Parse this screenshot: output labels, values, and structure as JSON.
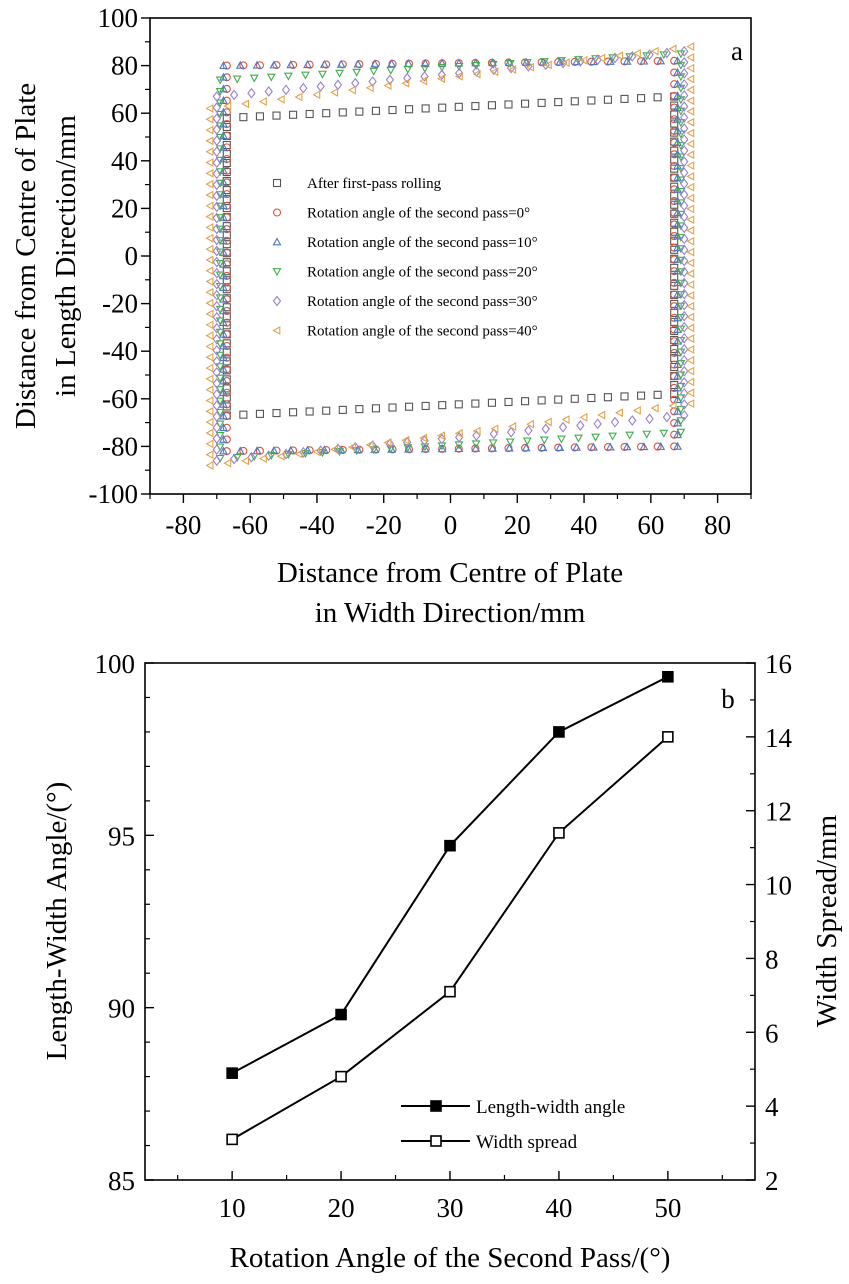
{
  "chart_data": [
    {
      "type": "scatter",
      "panel_label": "a",
      "xlabel": [
        "Distance from Centre of Plate",
        "in Width Direction/mm"
      ],
      "ylabel": [
        "Distance from Centre of Plate",
        "in Length Direction/mm"
      ],
      "xlim": [
        -90,
        90
      ],
      "ylim": [
        -100,
        100
      ],
      "xticks": [
        "-80",
        "-60",
        "-40",
        "-20",
        "0",
        "20",
        "40",
        "60",
        "80"
      ],
      "yticks": [
        "100",
        "80",
        "60",
        "40",
        "20",
        "0",
        "-20",
        "-40",
        "-60",
        "-80",
        "-100"
      ],
      "legend_position": "center",
      "series": [
        {
          "name": "After first-pass rolling",
          "marker": "square",
          "color": "#555555",
          "corners": {
            "top_left": [
              -67,
              58
            ],
            "top_right": [
              67,
              67
            ],
            "bottom_right": [
              67,
              -58
            ],
            "bottom_left": [
              -67,
              -67
            ]
          }
        },
        {
          "name": "Rotation angle of the second pass=0°",
          "marker": "circle",
          "color": "#e0513a",
          "corners": {
            "top_left": [
              -67,
              80
            ],
            "top_right": [
              67,
              82
            ],
            "bottom_right": [
              67,
              -80
            ],
            "bottom_left": [
              -67,
              -82
            ]
          }
        },
        {
          "name": "Rotation angle of the second pass=10°",
          "marker": "triangle-up",
          "color": "#4a78c8",
          "corners": {
            "top_left": [
              -68,
              80
            ],
            "top_right": [
              68,
              82
            ],
            "bottom_right": [
              68,
              -80
            ],
            "bottom_left": [
              -68,
              -82
            ]
          }
        },
        {
          "name": "Rotation angle of the second pass=20°",
          "marker": "triangle-down",
          "color": "#3fae49",
          "corners": {
            "top_left": [
              -69,
              74
            ],
            "top_right": [
              69,
              85
            ],
            "bottom_right": [
              69,
              -74
            ],
            "bottom_left": [
              -69,
              -85
            ]
          }
        },
        {
          "name": "Rotation angle of the second pass=30°",
          "marker": "diamond",
          "color": "#9a7fd0",
          "corners": {
            "top_left": [
              -70,
              67
            ],
            "top_right": [
              70,
              86
            ],
            "bottom_right": [
              70,
              -67
            ],
            "bottom_left": [
              -70,
              -86
            ]
          }
        },
        {
          "name": "Rotation angle of the second pass=40°",
          "marker": "triangle-left",
          "color": "#e4a24a",
          "corners": {
            "top_left": [
              -72,
              62
            ],
            "top_right": [
              72,
              88
            ],
            "bottom_right": [
              72,
              -62
            ],
            "bottom_left": [
              -72,
              -88
            ]
          }
        }
      ]
    },
    {
      "type": "line",
      "panel_label": "b",
      "xlabel": "Rotation Angle of the Second Pass/(°)",
      "ylabel_left": "Length-Width Angle/(°)",
      "ylabel_right": "Width Spread/mm",
      "x": [
        10,
        20,
        30,
        40,
        50
      ],
      "xlim": [
        2,
        58
      ],
      "ylim_left": [
        85,
        100
      ],
      "ylim_right": [
        2,
        16
      ],
      "xticks": [
        "10",
        "20",
        "30",
        "40",
        "50"
      ],
      "yticks_left": [
        "85",
        "90",
        "95",
        "100"
      ],
      "yticks_right": [
        "2",
        "4",
        "6",
        "8",
        "10",
        "12",
        "14",
        "16"
      ],
      "legend_position": "bottom-right",
      "series": [
        {
          "name": "Length-width angle",
          "axis": "left",
          "marker": "filled-square",
          "values": [
            88.1,
            89.8,
            94.7,
            98.0,
            99.6
          ]
        },
        {
          "name": "Width spread",
          "axis": "right",
          "marker": "open-square",
          "values": [
            3.1,
            4.8,
            7.1,
            11.4,
            14.0
          ]
        }
      ]
    }
  ]
}
